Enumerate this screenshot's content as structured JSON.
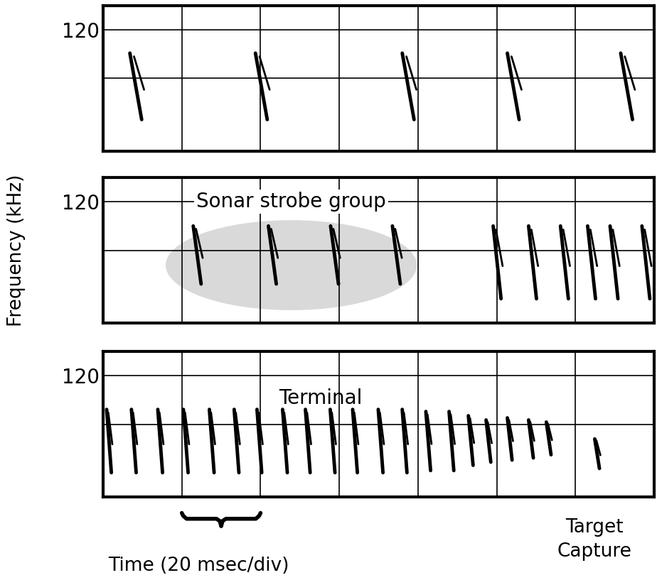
{
  "chart_data": [
    {
      "type": "spectrogram",
      "xlim": [
        0,
        140
      ],
      "xticks": [
        0,
        20,
        40,
        60,
        80,
        100,
        120,
        140
      ],
      "ylim": [
        5,
        143
      ],
      "yticks": [
        120
      ],
      "grid": true,
      "tick_labels": "y",
      "color": "#000000",
      "call_duration_ms": 3,
      "calls": {
        "x": [
          6.8,
          38.7,
          76.0,
          102.7,
          131.5
        ],
        "start_khz": [
          98,
          98,
          98,
          98,
          98
        ],
        "end_khz": [
          35,
          35,
          35,
          35,
          35
        ]
      }
    },
    {
      "type": "spectrogram",
      "xlim": [
        0,
        140
      ],
      "xticks": [
        0,
        20,
        40,
        60,
        80,
        100,
        120,
        140
      ],
      "ylim": [
        5,
        143
      ],
      "yticks": [
        120
      ],
      "grid": true,
      "tick_labels": "y",
      "color": "#000000",
      "y_label": "Frequency (kHz)",
      "call_duration_ms": 2,
      "strobe_group": {
        "label": "Sonar strobe group",
        "x": [
          22.9,
          42.0,
          57.8,
          73.5
        ],
        "start_khz": [
          97,
          97,
          97,
          97
        ],
        "end_khz": [
          42,
          42,
          42,
          42
        ]
      },
      "calls": {
        "x": [
          99.1,
          108.1,
          116.2,
          123.1,
          128.8,
          136.9
        ],
        "start_khz": [
          97,
          97,
          97,
          97,
          97,
          97
        ],
        "end_khz": [
          28,
          28,
          28,
          28,
          28,
          28
        ]
      }
    },
    {
      "type": "spectrogram",
      "xlim": [
        0,
        140
      ],
      "xticks": [
        0,
        20,
        40,
        60,
        80,
        100,
        120,
        140
      ],
      "ylim": [
        5,
        143
      ],
      "yticks": [
        120
      ],
      "grid": true,
      "tick_labels": "y",
      "color": "#000000",
      "annotation": "Terminal",
      "x_label": "Time (20 msec/div)",
      "note": "Target\nCapture",
      "call_duration_ms": 1.2,
      "calls": {
        "x": [
          0.9,
          7.2,
          13.9,
          20.4,
          27.0,
          33.3,
          39.1,
          45.6,
          51.4,
          57.7,
          63.4,
          69.9,
          76.0,
          82.0,
          87.9,
          92.8,
          97.3,
          102.7,
          108.1,
          112.6,
          124.9
        ],
        "start_khz": [
          88,
          88,
          88,
          88,
          88,
          88,
          88,
          88,
          88,
          88,
          88,
          88,
          88,
          86,
          86,
          82,
          78,
          80,
          78,
          76,
          60
        ],
        "end_khz": [
          28,
          28,
          28,
          28,
          28,
          28,
          28,
          28,
          28,
          28,
          28,
          28,
          28,
          30,
          30,
          35,
          38,
          40,
          42,
          45,
          32
        ]
      }
    }
  ]
}
